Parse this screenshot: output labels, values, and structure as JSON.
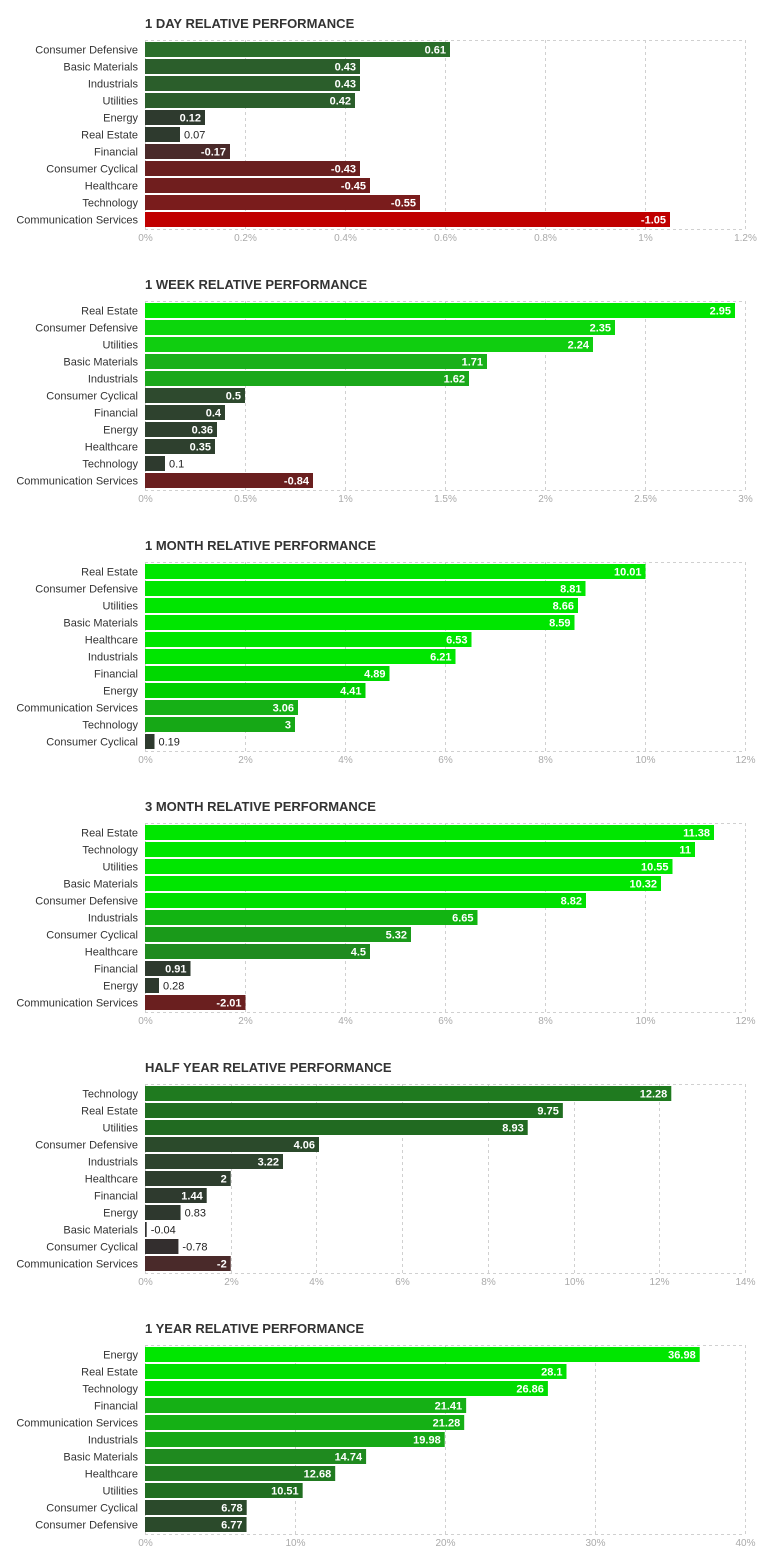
{
  "colors": {
    "positive_strong": "#00e600",
    "positive_mid": "#1f7a1f",
    "positive_weak": "#2e3a2e",
    "negative_weak": "#5a1f1f",
    "negative_strong": "#c00000"
  },
  "chart_data": [
    {
      "type": "bar",
      "orientation": "horizontal",
      "title": "1 DAY RELATIVE PERFORMANCE",
      "categories": [
        "Consumer Defensive",
        "Basic Materials",
        "Industrials",
        "Utilities",
        "Energy",
        "Real Estate",
        "Financial",
        "Consumer Cyclical",
        "Healthcare",
        "Technology",
        "Communication Services"
      ],
      "values": [
        0.61,
        0.43,
        0.43,
        0.42,
        0.12,
        0.07,
        -0.17,
        -0.43,
        -0.45,
        -0.55,
        -1.05
      ],
      "value_labels": [
        "0.61",
        "0.43",
        "0.43",
        "0.42",
        "0.12",
        "0.07",
        "-0.17",
        "-0.43",
        "-0.45",
        "-0.55",
        "-1.05"
      ],
      "xlim": [
        0,
        1.2
      ],
      "ticks": [
        0,
        0.2,
        0.4,
        0.6,
        0.8,
        1,
        1.2
      ],
      "tick_labels": [
        "0%",
        "0.2%",
        "0.4%",
        "0.6%",
        "0.8%",
        "1%",
        "1.2%"
      ],
      "bar_length": "absolute value",
      "grid": true,
      "colors": [
        "#2b6e2b",
        "#2b5e2b",
        "#2b5e2b",
        "#2b5e2b",
        "#2e3a2e",
        "#2e3a2e",
        "#4a2a2a",
        "#6a1f1f",
        "#701e1e",
        "#7a1c1c",
        "#c00000"
      ]
    },
    {
      "type": "bar",
      "orientation": "horizontal",
      "title": "1 WEEK RELATIVE PERFORMANCE",
      "categories": [
        "Real Estate",
        "Consumer Defensive",
        "Utilities",
        "Basic Materials",
        "Industrials",
        "Consumer Cyclical",
        "Financial",
        "Energy",
        "Healthcare",
        "Technology",
        "Communication Services"
      ],
      "values": [
        2.95,
        2.35,
        2.24,
        1.71,
        1.62,
        0.5,
        0.4,
        0.36,
        0.35,
        0.1,
        -0.84
      ],
      "value_labels": [
        "2.95",
        "2.35",
        "2.24",
        "1.71",
        "1.62",
        "0.5",
        "0.4",
        "0.36",
        "0.35",
        "0.1",
        "-0.84"
      ],
      "xlim": [
        0,
        3
      ],
      "ticks": [
        0,
        0.5,
        1,
        1.5,
        2,
        2.5,
        3
      ],
      "tick_labels": [
        "0%",
        "0.5%",
        "1%",
        "1.5%",
        "2%",
        "2.5%",
        "3%"
      ],
      "bar_length": "absolute value",
      "grid": true,
      "colors": [
        "#00e600",
        "#0cd60c",
        "#10ce10",
        "#1ab01a",
        "#1ba81b",
        "#2e4a2e",
        "#2e422e",
        "#2e402e",
        "#2e402e",
        "#2e3a2e",
        "#6a1f1f"
      ]
    },
    {
      "type": "bar",
      "orientation": "horizontal",
      "title": "1 MONTH RELATIVE PERFORMANCE",
      "categories": [
        "Real Estate",
        "Consumer Defensive",
        "Utilities",
        "Basic Materials",
        "Healthcare",
        "Industrials",
        "Financial",
        "Energy",
        "Communication Services",
        "Technology",
        "Consumer Cyclical"
      ],
      "values": [
        10.01,
        8.81,
        8.66,
        8.59,
        6.53,
        6.21,
        4.89,
        4.41,
        3.06,
        3,
        0.19
      ],
      "value_labels": [
        "10.01",
        "8.81",
        "8.66",
        "8.59",
        "6.53",
        "6.21",
        "4.89",
        "4.41",
        "3.06",
        "3",
        "0.19"
      ],
      "xlim": [
        0,
        12
      ],
      "ticks": [
        0,
        2,
        4,
        6,
        8,
        10,
        12
      ],
      "tick_labels": [
        "0%",
        "2%",
        "4%",
        "6%",
        "8%",
        "10%",
        "12%"
      ],
      "bar_length": "absolute value",
      "grid": true,
      "colors": [
        "#00e600",
        "#00e600",
        "#00e600",
        "#00e600",
        "#00e600",
        "#00e600",
        "#00d800",
        "#00d000",
        "#16b016",
        "#16a816",
        "#2e3a2e"
      ]
    },
    {
      "type": "bar",
      "orientation": "horizontal",
      "title": "3 MONTH RELATIVE PERFORMANCE",
      "categories": [
        "Real Estate",
        "Technology",
        "Utilities",
        "Basic Materials",
        "Consumer Defensive",
        "Industrials",
        "Consumer Cyclical",
        "Healthcare",
        "Financial",
        "Energy",
        "Communication Services"
      ],
      "values": [
        11.38,
        11,
        10.55,
        10.32,
        8.82,
        6.65,
        5.32,
        4.5,
        0.91,
        0.28,
        -2.01
      ],
      "value_labels": [
        "11.38",
        "11",
        "10.55",
        "10.32",
        "8.82",
        "6.65",
        "5.32",
        "4.5",
        "0.91",
        "0.28",
        "-2.01"
      ],
      "xlim": [
        0,
        12
      ],
      "ticks": [
        0,
        2,
        4,
        6,
        8,
        10,
        12
      ],
      "tick_labels": [
        "0%",
        "2%",
        "4%",
        "6%",
        "8%",
        "10%",
        "12%"
      ],
      "bar_length": "absolute value",
      "grid": true,
      "colors": [
        "#00e600",
        "#00e600",
        "#00e600",
        "#00e600",
        "#00e000",
        "#12b412",
        "#1a9a1a",
        "#1f8a1f",
        "#2e3a2e",
        "#2e3a2e",
        "#6a1f1f"
      ]
    },
    {
      "type": "bar",
      "orientation": "horizontal",
      "title": "HALF YEAR RELATIVE PERFORMANCE",
      "categories": [
        "Technology",
        "Real Estate",
        "Utilities",
        "Consumer Defensive",
        "Industrials",
        "Healthcare",
        "Financial",
        "Energy",
        "Basic Materials",
        "Consumer Cyclical",
        "Communication Services"
      ],
      "values": [
        12.28,
        9.75,
        8.93,
        4.06,
        3.22,
        2,
        1.44,
        0.83,
        -0.04,
        -0.78,
        -2
      ],
      "value_labels": [
        "12.28",
        "9.75",
        "8.93",
        "4.06",
        "3.22",
        "2",
        "1.44",
        "0.83",
        "-0.04",
        "-0.78",
        "-2"
      ],
      "xlim": [
        0,
        14
      ],
      "ticks": [
        0,
        2,
        4,
        6,
        8,
        10,
        12,
        14
      ],
      "tick_labels": [
        "0%",
        "2%",
        "4%",
        "6%",
        "8%",
        "10%",
        "12%",
        "14%"
      ],
      "bar_length": "absolute value",
      "grid": true,
      "colors": [
        "#1f7a1f",
        "#206e20",
        "#216a21",
        "#2b4a2b",
        "#2e442e",
        "#2e3e2e",
        "#2e3a2e",
        "#2e382e",
        "#333333",
        "#332e2e",
        "#4a2a2a"
      ]
    },
    {
      "type": "bar",
      "orientation": "horizontal",
      "title": "1 YEAR RELATIVE PERFORMANCE",
      "categories": [
        "Energy",
        "Real Estate",
        "Technology",
        "Financial",
        "Communication Services",
        "Industrials",
        "Basic Materials",
        "Healthcare",
        "Utilities",
        "Consumer Cyclical",
        "Consumer Defensive"
      ],
      "values": [
        36.98,
        28.1,
        26.86,
        21.41,
        21.28,
        19.98,
        14.74,
        12.68,
        10.51,
        6.78,
        6.77
      ],
      "value_labels": [
        "36.98",
        "28.1",
        "26.86",
        "21.41",
        "21.28",
        "19.98",
        "14.74",
        "12.68",
        "10.51",
        "6.78",
        "6.77"
      ],
      "xlim": [
        0,
        40
      ],
      "ticks": [
        0,
        10,
        20,
        30,
        40
      ],
      "tick_labels": [
        "0%",
        "10%",
        "20%",
        "30%",
        "40%"
      ],
      "bar_length": "absolute value",
      "grid": true,
      "colors": [
        "#00e600",
        "#00e000",
        "#00dc00",
        "#15b015",
        "#15b015",
        "#17a817",
        "#1f8a1f",
        "#217a21",
        "#216e21",
        "#2b4a2b",
        "#2b4a2b"
      ]
    }
  ]
}
